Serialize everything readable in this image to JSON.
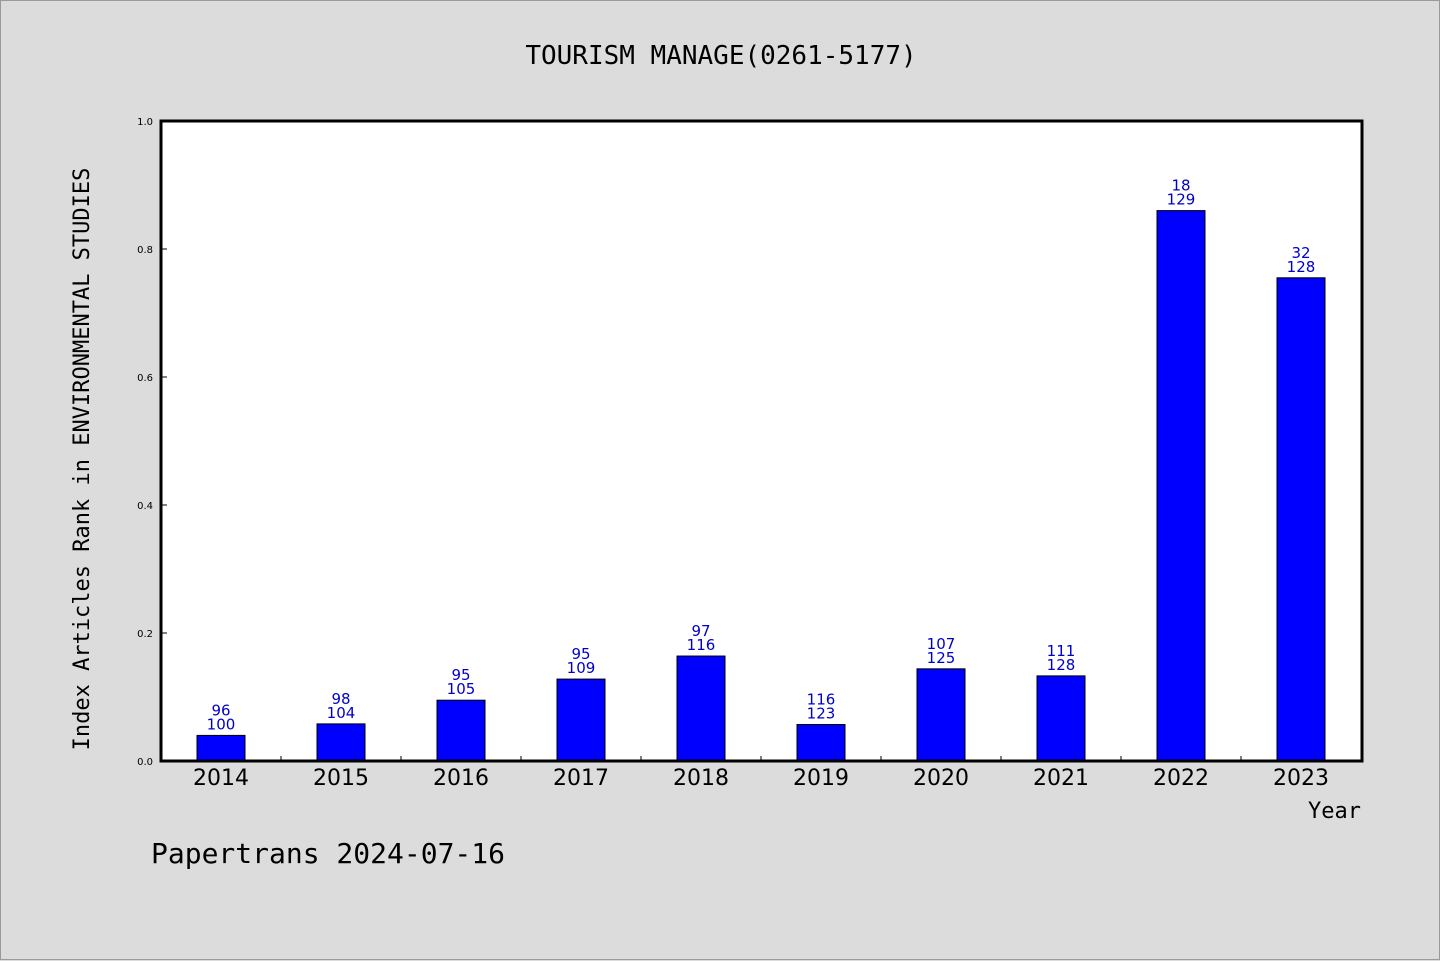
{
  "chart_data": {
    "type": "bar",
    "title": "TOURISM MANAGE(0261-5177)",
    "xlabel": "Year",
    "ylabel": "Index Articles Rank in ENVIRONMENTAL STUDIES",
    "ylim": [
      0,
      1.0
    ],
    "yticks": [
      "0.0",
      "0.2",
      "0.4",
      "0.6",
      "0.8",
      "1.0"
    ],
    "categories": [
      "2014",
      "2015",
      "2016",
      "2017",
      "2018",
      "2019",
      "2020",
      "2021",
      "2022",
      "2023"
    ],
    "values": [
      0.04,
      0.058,
      0.095,
      0.128,
      0.164,
      0.057,
      0.144,
      0.133,
      0.86,
      0.755
    ],
    "labels_top": [
      "96",
      "98",
      "95",
      "95",
      "97",
      "116",
      "107",
      "111",
      "18",
      "32"
    ],
    "labels_bottom": [
      "100",
      "104",
      "105",
      "109",
      "116",
      "123",
      "125",
      "128",
      "129",
      "128"
    ],
    "bar_color": "#0000ff",
    "label_color": "#0000cc",
    "grid": false
  },
  "footer": "Papertrans 2024-07-16"
}
